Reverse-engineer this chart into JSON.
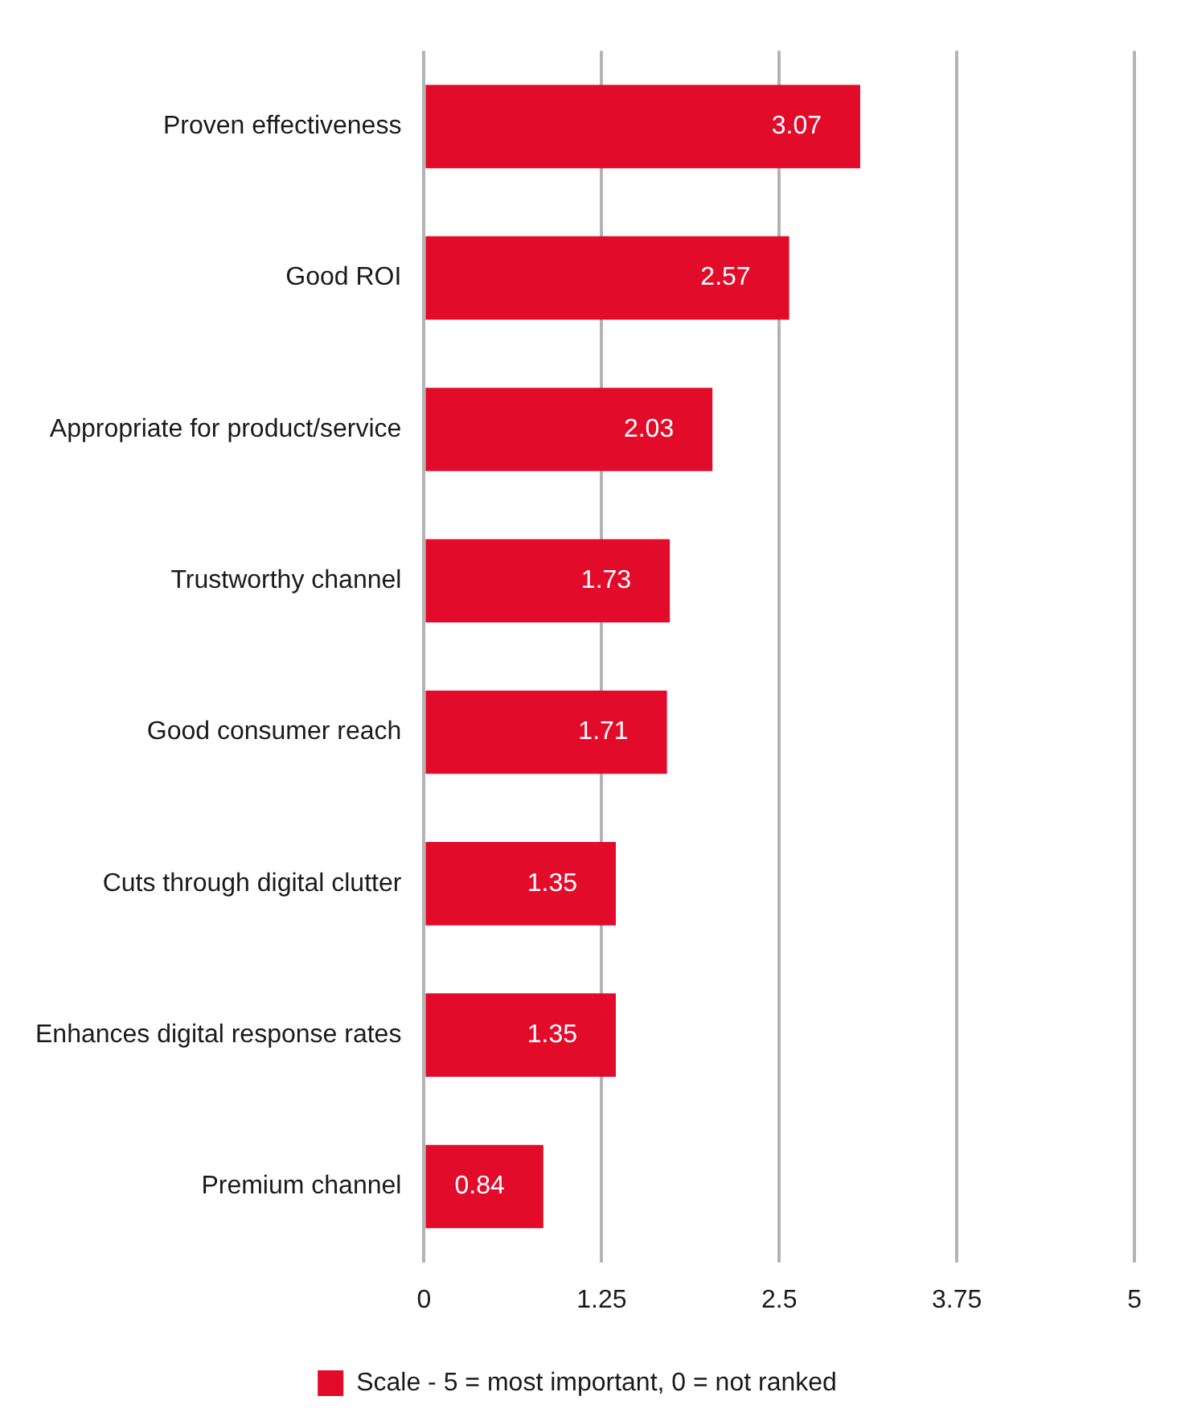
{
  "chart_data": {
    "type": "bar",
    "orientation": "horizontal",
    "categories": [
      "Proven effectiveness",
      "Good ROI",
      "Appropriate for product/service",
      "Trustworthy channel",
      "Good consumer reach",
      "Cuts through digital clutter",
      "Enhances digital response rates",
      "Premium channel"
    ],
    "series": [
      {
        "name": "Scale - 5 = most important, 0 = not ranked",
        "color": "#e30b2a",
        "values": [
          3.07,
          2.57,
          2.03,
          1.73,
          1.71,
          1.35,
          1.35,
          0.84
        ]
      }
    ],
    "xlim": [
      0,
      5
    ],
    "xticks": [
      0,
      1.25,
      2.5,
      3.75,
      5
    ],
    "grid": "x",
    "legend": "bottom",
    "data_labels": true
  }
}
